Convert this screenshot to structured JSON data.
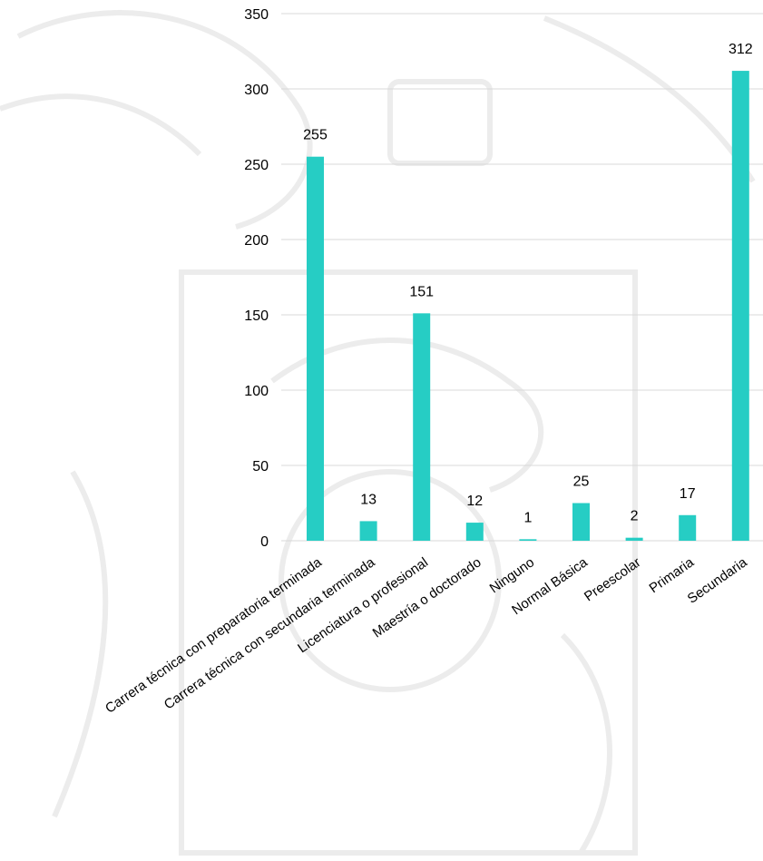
{
  "chart_data": {
    "type": "bar",
    "categories": [
      "Carrera técnica con preparatoria terminada",
      "Carrera técnica con secundaria terminada",
      "Licenciatura o profesional",
      "Maestría o doctorado",
      "Ninguno",
      "Normal Básica",
      "Preescolar",
      "Primaria",
      "Secundaria"
    ],
    "values": [
      255,
      13,
      151,
      12,
      1,
      25,
      2,
      17,
      312
    ],
    "ylim": [
      0,
      350
    ],
    "yticks": [
      0,
      50,
      100,
      150,
      200,
      250,
      300,
      350
    ],
    "grid": true,
    "bar_color": "#26cdc4",
    "data_labels": true
  }
}
